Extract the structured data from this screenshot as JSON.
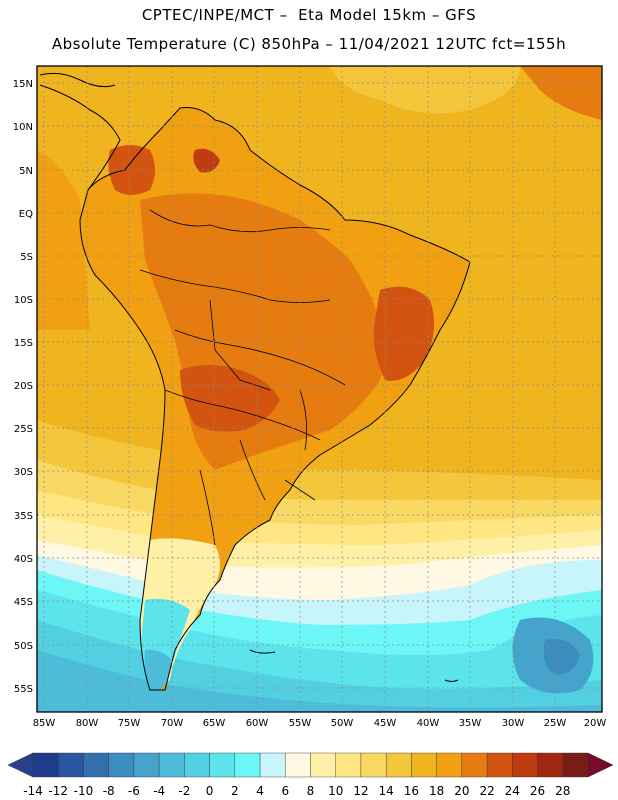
{
  "header": {
    "line1": "CPTEC/INPE/MCT –  Eta Model 15km – GFS",
    "line2": "Absolute Temperature (C) 850hPa – 11/04/2021 12UTC fct=155h"
  },
  "axes": {
    "lat_labels": [
      "15N",
      "10N",
      "5N",
      "EQ",
      "5S",
      "10S",
      "15S",
      "20S",
      "25S",
      "30S",
      "35S",
      "40S",
      "45S",
      "50S",
      "55S"
    ],
    "lon_labels": [
      "85W",
      "80W",
      "75W",
      "70W",
      "65W",
      "60W",
      "55W",
      "50W",
      "45W",
      "40W",
      "35W",
      "30W",
      "25W",
      "20W"
    ]
  },
  "colorbar": {
    "labels": [
      "-14",
      "-12",
      "-10",
      "-8",
      "-6",
      "-4",
      "-2",
      "0",
      "2",
      "4",
      "6",
      "8",
      "10",
      "12",
      "14",
      "16",
      "18",
      "20",
      "22",
      "24",
      "26",
      "28"
    ],
    "colors": [
      "#1e3c8c",
      "#2a56a0",
      "#3470b0",
      "#3c8cc0",
      "#46a4cc",
      "#4cbcd8",
      "#52d0e2",
      "#5ce4ec",
      "#6cf6f6",
      "#c8f4fc",
      "#fff8e2",
      "#fff0a8",
      "#ffe682",
      "#fad864",
      "#f4c63c",
      "#f0b41e",
      "#f0a010",
      "#e67c10",
      "#d25410",
      "#be3c10",
      "#a02810",
      "#781e14"
    ],
    "low_color": "#28408c",
    "high_color": "#7a0a2a"
  }
}
